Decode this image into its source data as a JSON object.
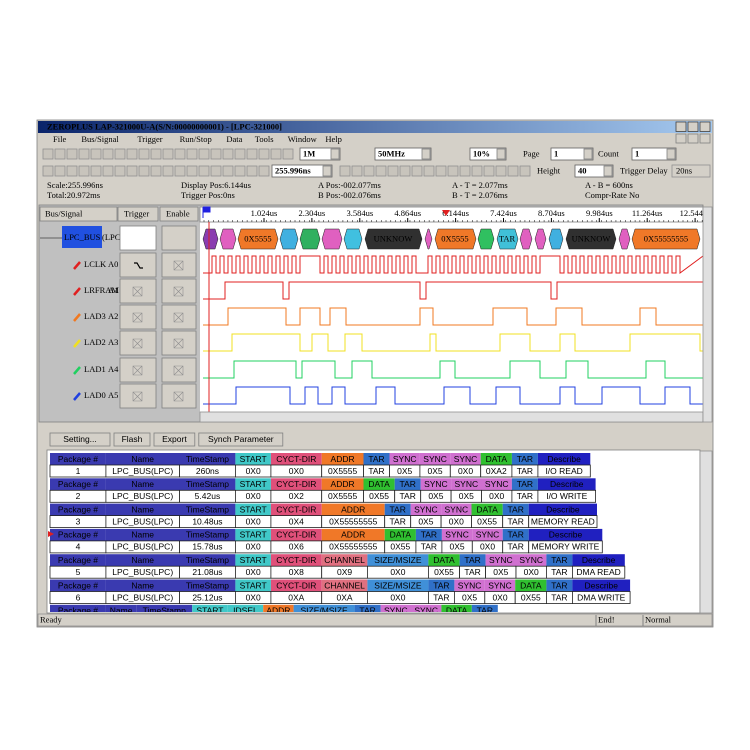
{
  "title": "ZEROPLUS LAP-321000U-A(S/N:00000000001) - [LPC-321000]",
  "menu": [
    "File",
    "Bus/Signal",
    "Trigger",
    "Run/Stop",
    "Data",
    "Tools",
    "Window",
    "Help"
  ],
  "toolbar": {
    "sample_depth": "1M",
    "sample_rate": "50MHz",
    "trigger_pos": "10%",
    "page_label": "Page",
    "page": "1",
    "count_label": "Count",
    "count": "1",
    "scale": "255.996ns",
    "height_label": "Height",
    "height": "40",
    "trigger_delay_label": "Trigger Delay",
    "trigger_delay": "20ns"
  },
  "info": {
    "scale": "Scale:255.996ns",
    "total": "Total:20.972ms",
    "display_pos": "Display Pos:6.144us",
    "trigger_pos": "Trigger Pos:0ns",
    "a_pos": "A Pos:-002.077ms",
    "b_pos": "B Pos:-002.076ms",
    "a_t": "A - T = 2.077ms",
    "b_t": "B - T = 2.076ms",
    "a_b": "A - B = 600ns",
    "compr": "Compr-Rate No"
  },
  "columns": [
    "Bus/Signal",
    "Trigger",
    "Enable"
  ],
  "bus": {
    "name": "LPC_BUS",
    "protocol": "(LPC"
  },
  "signals": [
    {
      "name": "LCLK",
      "pin": "A0",
      "color": "#e02020"
    },
    {
      "name": "LRFRAM",
      "pin": "A1",
      "color": "#e02020"
    },
    {
      "name": "LAD3",
      "pin": "A2",
      "color": "#f07820"
    },
    {
      "name": "LAD2",
      "pin": "A3",
      "color": "#f0e020"
    },
    {
      "name": "LAD1",
      "pin": "A4",
      "color": "#20d060"
    },
    {
      "name": "LAD0",
      "pin": "A5",
      "color": "#2040e0"
    }
  ],
  "ruler": [
    "1.024us",
    "2.304us",
    "3.584us",
    "4.864us",
    "6.144us",
    "7.424us",
    "8.704us",
    "9.984us",
    "11.264us",
    "12.544us"
  ],
  "bus_labels": [
    "0X5555",
    "UNKNOW",
    "0X5555",
    "TAR",
    "UNKNOW",
    "0X55555555"
  ],
  "buttons": [
    "Setting...",
    "Flash",
    "Export",
    "Synch Parameter"
  ],
  "packets": [
    {
      "headers": [
        {
          "label": "Package #",
          "color": "#3a3ab0"
        },
        {
          "label": "Name",
          "color": "#3a3ab0"
        },
        {
          "label": "TimeStamp",
          "color": "#3a3ab0"
        },
        {
          "label": "START",
          "color": "#40c8c8"
        },
        {
          "label": "CYCT-DIR",
          "color": "#e0507a"
        },
        {
          "label": "ADDR",
          "color": "#f07828"
        },
        {
          "label": "TAR",
          "color": "#3070c8"
        },
        {
          "label": "SYNC",
          "color": "#d070d0"
        },
        {
          "label": "SYNC",
          "color": "#d070d0"
        },
        {
          "label": "SYNC",
          "color": "#d070d0"
        },
        {
          "label": "DATA",
          "color": "#30c030"
        },
        {
          "label": "TAR",
          "color": "#3070c8"
        },
        {
          "label": "Describe",
          "color": "#2020c0"
        }
      ],
      "values": [
        "1",
        "LPC_BUS(LPC)",
        "260ns",
        "0X0",
        "0X0",
        "0X5555",
        "TAR",
        "0X5",
        "0X5",
        "0X0",
        "0XA2",
        "TAR",
        "I/O READ"
      ]
    },
    {
      "headers": [
        {
          "label": "Package #",
          "color": "#3a3ab0"
        },
        {
          "label": "Name",
          "color": "#3a3ab0"
        },
        {
          "label": "TimeStamp",
          "color": "#3a3ab0"
        },
        {
          "label": "START",
          "color": "#40c8c8"
        },
        {
          "label": "CYCT-DIR",
          "color": "#e0507a"
        },
        {
          "label": "ADDR",
          "color": "#f07828"
        },
        {
          "label": "DATA",
          "color": "#30c030"
        },
        {
          "label": "TAR",
          "color": "#3070c8"
        },
        {
          "label": "SYNC",
          "color": "#d070d0"
        },
        {
          "label": "SYNC",
          "color": "#d070d0"
        },
        {
          "label": "SYNC",
          "color": "#d070d0"
        },
        {
          "label": "TAR",
          "color": "#3070c8"
        },
        {
          "label": "Describe",
          "color": "#2020c0"
        }
      ],
      "values": [
        "2",
        "LPC_BUS(LPC)",
        "5.42us",
        "0X0",
        "0X2",
        "0X5555",
        "0X55",
        "TAR",
        "0X5",
        "0X5",
        "0X0",
        "TAR",
        "I/O WRITE"
      ]
    },
    {
      "headers": [
        {
          "label": "Package #",
          "color": "#3a3ab0"
        },
        {
          "label": "Name",
          "color": "#3a3ab0"
        },
        {
          "label": "TimeStamp",
          "color": "#3a3ab0"
        },
        {
          "label": "START",
          "color": "#40c8c8"
        },
        {
          "label": "CYCT-DIR",
          "color": "#e0507a"
        },
        {
          "label": "ADDR",
          "color": "#f07828"
        },
        {
          "label": "TAR",
          "color": "#3070c8"
        },
        {
          "label": "SYNC",
          "color": "#d070d0"
        },
        {
          "label": "SYNC",
          "color": "#d070d0"
        },
        {
          "label": "DATA",
          "color": "#30c030"
        },
        {
          "label": "TAR",
          "color": "#3070c8"
        },
        {
          "label": "Describe",
          "color": "#2020c0"
        }
      ],
      "values": [
        "3",
        "LPC_BUS(LPC)",
        "10.48us",
        "0X0",
        "0X4",
        "0X55555555",
        "TAR",
        "0X5",
        "0X0",
        "0X55",
        "TAR",
        "MEMORY READ"
      ]
    },
    {
      "headers": [
        {
          "label": "Package #",
          "color": "#3a3ab0"
        },
        {
          "label": "Name",
          "color": "#3a3ab0"
        },
        {
          "label": "TimeStamp",
          "color": "#3a3ab0"
        },
        {
          "label": "START",
          "color": "#40c8c8"
        },
        {
          "label": "CYCT-DIR",
          "color": "#e0507a"
        },
        {
          "label": "ADDR",
          "color": "#f07828"
        },
        {
          "label": "DATA",
          "color": "#30c030"
        },
        {
          "label": "TAR",
          "color": "#3070c8"
        },
        {
          "label": "SYNC",
          "color": "#d070d0"
        },
        {
          "label": "SYNC",
          "color": "#d070d0"
        },
        {
          "label": "TAR",
          "color": "#3070c8"
        },
        {
          "label": "Describe",
          "color": "#2020c0"
        }
      ],
      "values": [
        "4",
        "LPC_BUS(LPC)",
        "15.78us",
        "0X0",
        "0X6",
        "0X55555555",
        "0X55",
        "TAR",
        "0X5",
        "0X0",
        "TAR",
        "MEMORY WRITE"
      ]
    },
    {
      "headers": [
        {
          "label": "Package #",
          "color": "#3a3ab0"
        },
        {
          "label": "Name",
          "color": "#3a3ab0"
        },
        {
          "label": "TimeStamp",
          "color": "#3a3ab0"
        },
        {
          "label": "START",
          "color": "#40c8c8"
        },
        {
          "label": "CYCT-DIR",
          "color": "#e0507a"
        },
        {
          "label": "CHANNEL",
          "color": "#e07080"
        },
        {
          "label": "SIZE/MSIZE",
          "color": "#4090d8"
        },
        {
          "label": "DATA",
          "color": "#30c030"
        },
        {
          "label": "TAR",
          "color": "#3070c8"
        },
        {
          "label": "SYNC",
          "color": "#d070d0"
        },
        {
          "label": "SYNC",
          "color": "#d070d0"
        },
        {
          "label": "TAR",
          "color": "#3070c8"
        },
        {
          "label": "Describe",
          "color": "#2020c0"
        }
      ],
      "values": [
        "5",
        "LPC_BUS(LPC)",
        "21.08us",
        "0X0",
        "0X8",
        "0X9",
        "0X0",
        "0X55",
        "TAR",
        "0X5",
        "0X0",
        "TAR",
        "DMA READ"
      ]
    },
    {
      "headers": [
        {
          "label": "Package #",
          "color": "#3a3ab0"
        },
        {
          "label": "Name",
          "color": "#3a3ab0"
        },
        {
          "label": "TimeStamp",
          "color": "#3a3ab0"
        },
        {
          "label": "START",
          "color": "#40c8c8"
        },
        {
          "label": "CYCT-DIR",
          "color": "#e0507a"
        },
        {
          "label": "CHANNEL",
          "color": "#e07080"
        },
        {
          "label": "SIZE/MSIZE",
          "color": "#4090d8"
        },
        {
          "label": "TAR",
          "color": "#3070c8"
        },
        {
          "label": "SYNC",
          "color": "#d070d0"
        },
        {
          "label": "SYNC",
          "color": "#d070d0"
        },
        {
          "label": "DATA",
          "color": "#30c030"
        },
        {
          "label": "TAR",
          "color": "#3070c8"
        },
        {
          "label": "Describe",
          "color": "#2020c0"
        }
      ],
      "values": [
        "6",
        "LPC_BUS(LPC)",
        "25.12us",
        "0X0",
        "0XA",
        "0XA",
        "0X0",
        "TAR",
        "0X5",
        "0X0",
        "0X55",
        "TAR",
        "DMA WRITE"
      ]
    },
    {
      "headers": [
        {
          "label": "Package #",
          "color": "#3a3ab0"
        },
        {
          "label": "Name",
          "color": "#3a3ab0"
        },
        {
          "label": "TimeStamp",
          "color": "#3a3ab0"
        },
        {
          "label": "START",
          "color": "#40c8c8"
        },
        {
          "label": "IDSEL",
          "color": "#40c8c8"
        },
        {
          "label": "ADDR",
          "color": "#f07828"
        },
        {
          "label": "SIZE/MSIZE",
          "color": "#4090d8"
        },
        {
          "label": "TAR",
          "color": "#3070c8"
        },
        {
          "label": "SYNC",
          "color": "#d070d0"
        },
        {
          "label": "SYNC",
          "color": "#d070d0"
        },
        {
          "label": "DATA",
          "color": "#30c030"
        },
        {
          "label": "TAR",
          "color": "#3070c8"
        }
      ],
      "values": []
    }
  ],
  "status": [
    "Ready",
    "End!",
    "Normal"
  ]
}
